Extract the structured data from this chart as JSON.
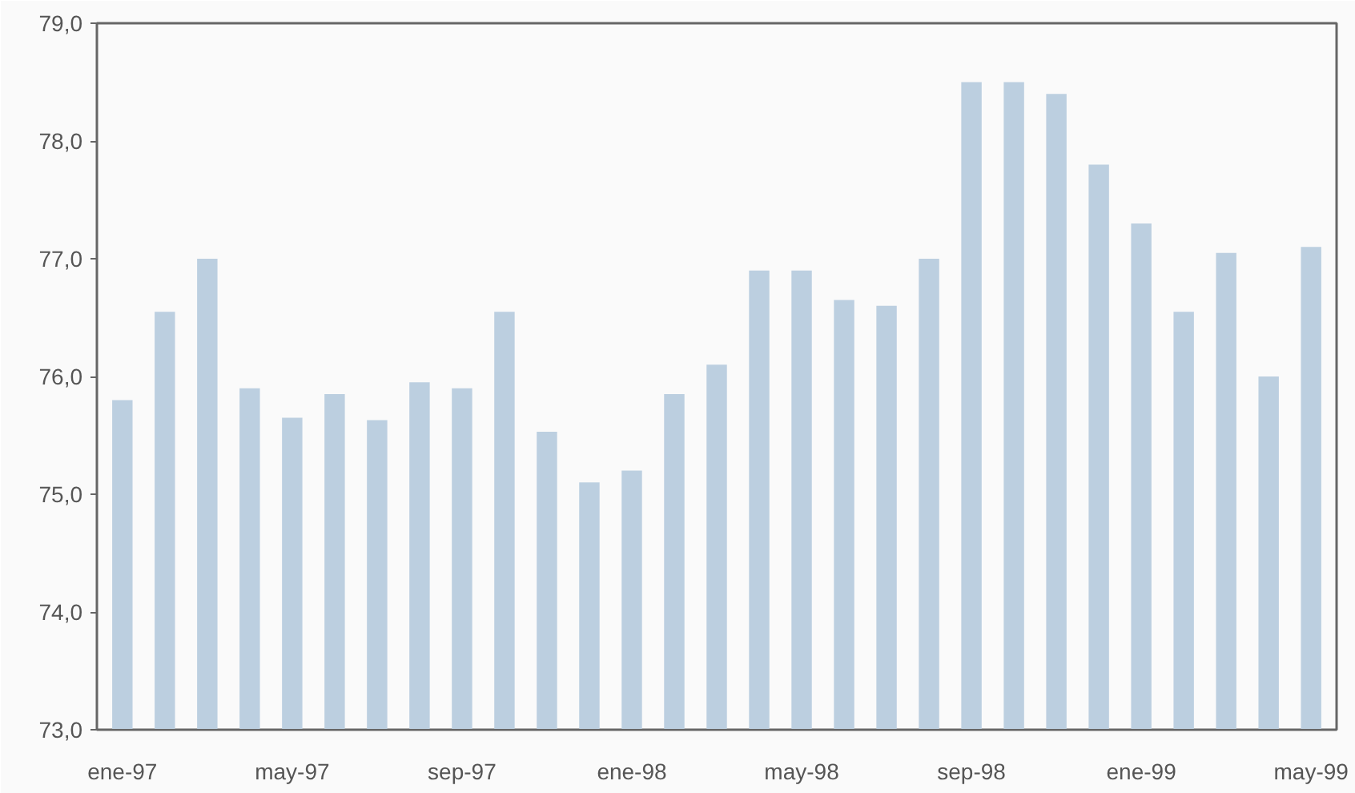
{
  "chart_data": {
    "type": "bar",
    "categories": [
      "ene-97",
      null,
      null,
      null,
      "may-97",
      null,
      null,
      null,
      "sep-97",
      null,
      null,
      null,
      "ene-98",
      null,
      null,
      null,
      "may-98",
      null,
      null,
      null,
      "sep-98",
      null,
      null,
      null,
      "ene-99",
      null,
      null,
      null,
      "may-99"
    ],
    "values": [
      75.8,
      76.55,
      77.0,
      75.9,
      75.65,
      75.85,
      75.63,
      75.95,
      75.9,
      76.55,
      75.53,
      75.1,
      75.2,
      75.85,
      76.1,
      76.9,
      76.9,
      76.65,
      76.6,
      77.0,
      78.5,
      78.5,
      78.4,
      77.8,
      77.3,
      76.55,
      77.05,
      76.0,
      77.1
    ],
    "color": "#bccfe0",
    "ylim": [
      73,
      79
    ],
    "yticks": [
      {
        "value": 73,
        "label": "73,0"
      },
      {
        "value": 74,
        "label": "74,0"
      },
      {
        "value": 75,
        "label": "75,0"
      },
      {
        "value": 76,
        "label": "76,0"
      },
      {
        "value": 77,
        "label": "77,0"
      },
      {
        "value": 78,
        "label": "78,0"
      },
      {
        "value": 79,
        "label": "79,0"
      }
    ],
    "grid": false
  }
}
